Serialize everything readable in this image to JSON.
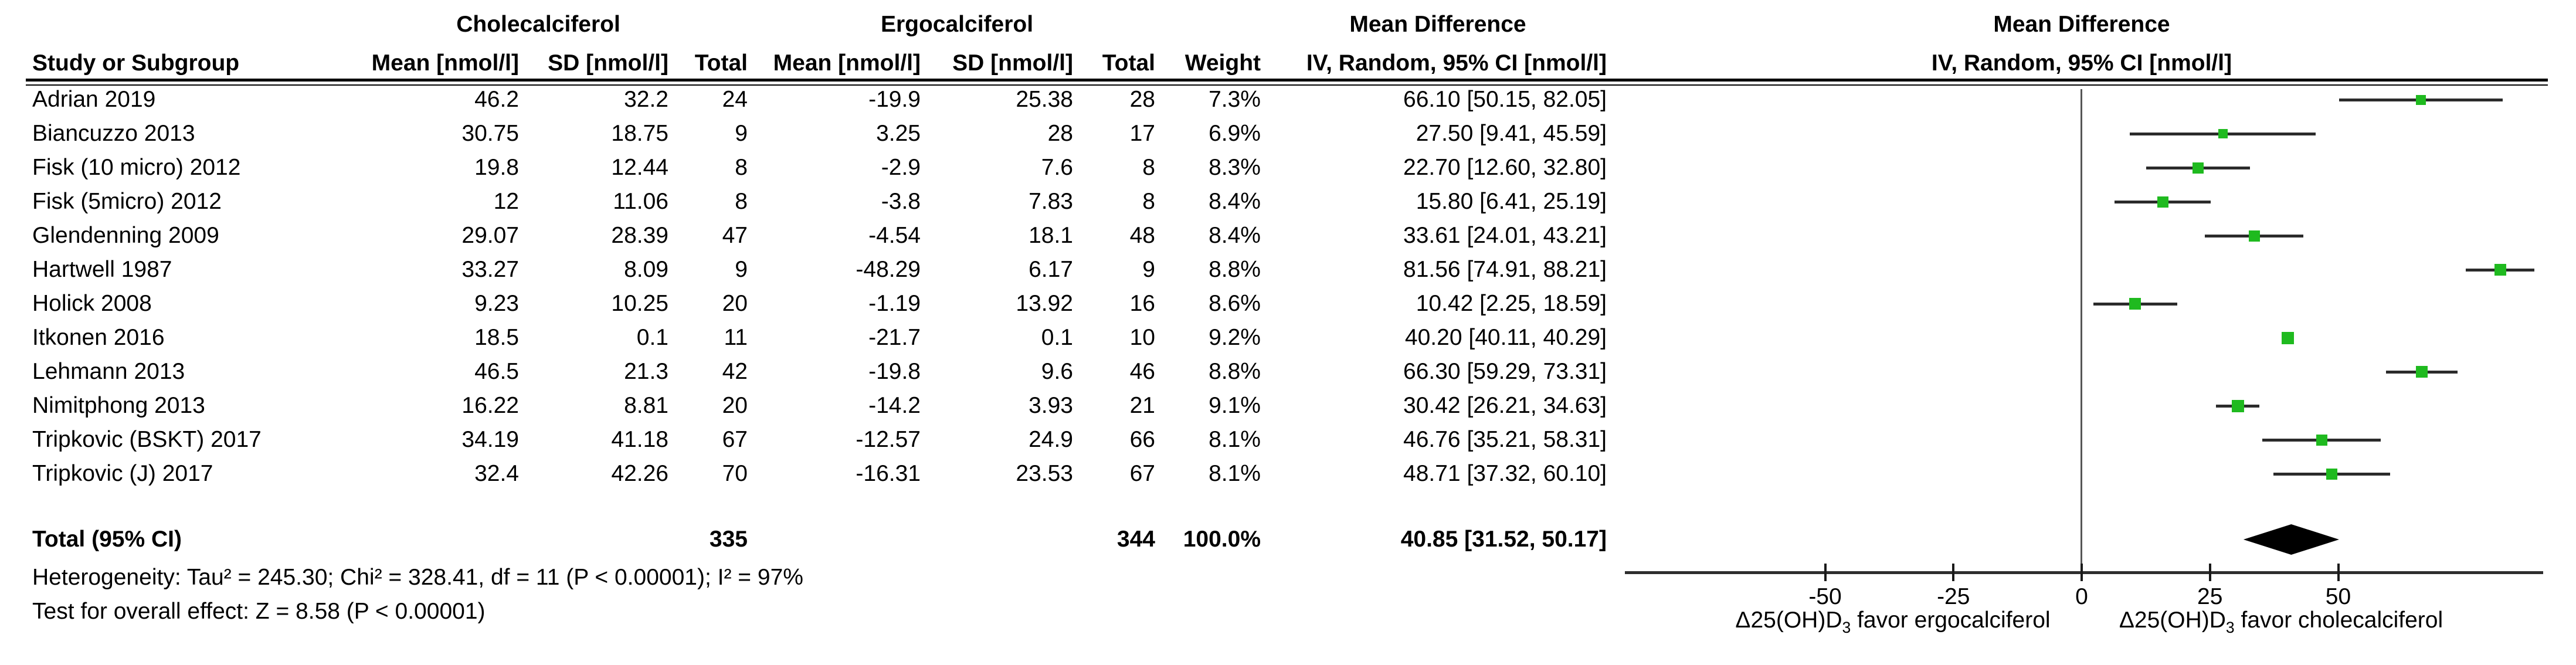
{
  "table": {
    "group_headers": {
      "treatment1": "Cholecalciferol",
      "treatment2": "Ergocalciferol",
      "effect_text": "Mean Difference",
      "effect_plot": "Mean Difference"
    },
    "col_headers": {
      "study": "Study or Subgroup",
      "mean": "Mean [nmol/l]",
      "sd": "SD [nmol/l]",
      "total": "Total",
      "weight": "Weight",
      "ci": "IV, Random, 95% CI [nmol/l]"
    },
    "rows": [
      {
        "study": "Adrian 2019",
        "mean1": "46.2",
        "sd1": "32.2",
        "total1": "24",
        "mean2": "-19.9",
        "sd2": "25.38",
        "total2": "28",
        "weight": "7.3%",
        "ci": "66.10 [50.15, 82.05]"
      },
      {
        "study": "Biancuzzo 2013",
        "mean1": "30.75",
        "sd1": "18.75",
        "total1": "9",
        "mean2": "3.25",
        "sd2": "28",
        "total2": "17",
        "weight": "6.9%",
        "ci": "27.50 [9.41, 45.59]"
      },
      {
        "study": "Fisk (10 micro) 2012",
        "mean1": "19.8",
        "sd1": "12.44",
        "total1": "8",
        "mean2": "-2.9",
        "sd2": "7.6",
        "total2": "8",
        "weight": "8.3%",
        "ci": "22.70 [12.60, 32.80]"
      },
      {
        "study": "Fisk (5micro) 2012",
        "mean1": "12",
        "sd1": "11.06",
        "total1": "8",
        "mean2": "-3.8",
        "sd2": "7.83",
        "total2": "8",
        "weight": "8.4%",
        "ci": "15.80 [6.41, 25.19]"
      },
      {
        "study": "Glendenning 2009",
        "mean1": "29.07",
        "sd1": "28.39",
        "total1": "47",
        "mean2": "-4.54",
        "sd2": "18.1",
        "total2": "48",
        "weight": "8.4%",
        "ci": "33.61 [24.01, 43.21]"
      },
      {
        "study": "Hartwell 1987",
        "mean1": "33.27",
        "sd1": "8.09",
        "total1": "9",
        "mean2": "-48.29",
        "sd2": "6.17",
        "total2": "9",
        "weight": "8.8%",
        "ci": "81.56 [74.91, 88.21]"
      },
      {
        "study": "Holick 2008",
        "mean1": "9.23",
        "sd1": "10.25",
        "total1": "20",
        "mean2": "-1.19",
        "sd2": "13.92",
        "total2": "16",
        "weight": "8.6%",
        "ci": "10.42 [2.25, 18.59]"
      },
      {
        "study": "Itkonen 2016",
        "mean1": "18.5",
        "sd1": "0.1",
        "total1": "11",
        "mean2": "-21.7",
        "sd2": "0.1",
        "total2": "10",
        "weight": "9.2%",
        "ci": "40.20 [40.11, 40.29]"
      },
      {
        "study": "Lehmann 2013",
        "mean1": "46.5",
        "sd1": "21.3",
        "total1": "42",
        "mean2": "-19.8",
        "sd2": "9.6",
        "total2": "46",
        "weight": "8.8%",
        "ci": "66.30 [59.29, 73.31]"
      },
      {
        "study": "Nimitphong 2013",
        "mean1": "16.22",
        "sd1": "8.81",
        "total1": "20",
        "mean2": "-14.2",
        "sd2": "3.93",
        "total2": "21",
        "weight": "9.1%",
        "ci": "30.42 [26.21, 34.63]"
      },
      {
        "study": "Tripkovic (BSKT) 2017",
        "mean1": "34.19",
        "sd1": "41.18",
        "total1": "67",
        "mean2": "-12.57",
        "sd2": "24.9",
        "total2": "66",
        "weight": "8.1%",
        "ci": "46.76 [35.21, 58.31]"
      },
      {
        "study": "Tripkovic (J) 2017",
        "mean1": "32.4",
        "sd1": "42.26",
        "total1": "70",
        "mean2": "-16.31",
        "sd2": "23.53",
        "total2": "67",
        "weight": "8.1%",
        "ci": "48.71 [37.32, 60.10]"
      }
    ],
    "total_row": {
      "label": "Total (95% CI)",
      "total1": "335",
      "total2": "344",
      "weight": "100.0%",
      "ci": "40.85 [31.52, 50.17]"
    },
    "footer": {
      "heterogeneity": "Heterogeneity: Tau² = 245.30; Chi² = 328.41, df = 11 (P < 0.00001); I² = 97%",
      "overall_effect": "Test for overall effect: Z = 8.58 (P < 0.00001)"
    }
  },
  "chart_data": {
    "type": "scatter",
    "title": "Mean Difference",
    "subtitle": "IV, Random, 95% CI [nmol/l]",
    "xlabel_left": "Δ25(OH)D3 favor ergocalciferol",
    "xlabel_right": "Δ25(OH)D3 favor cholecalciferol",
    "x_axis": {
      "ticks": [
        -50,
        -25,
        0,
        25,
        50
      ],
      "range": [
        -89,
        90
      ],
      "zero_line": true
    },
    "axis_labels": {
      "left": {
        "pre": "Δ25(OH)D",
        "sub": "3",
        "post": " favor ergocalciferol"
      },
      "right": {
        "pre": "Δ25(OH)D",
        "sub": "3",
        "post": " favor cholecalciferol"
      }
    },
    "studies": [
      {
        "name": "Adrian 2019",
        "est": 66.1,
        "lo": 50.15,
        "hi": 82.05,
        "weight_pct": 7.3
      },
      {
        "name": "Biancuzzo 2013",
        "est": 27.5,
        "lo": 9.41,
        "hi": 45.59,
        "weight_pct": 6.9
      },
      {
        "name": "Fisk (10 micro) 2012",
        "est": 22.7,
        "lo": 12.6,
        "hi": 32.8,
        "weight_pct": 8.3
      },
      {
        "name": "Fisk (5micro) 2012",
        "est": 15.8,
        "lo": 6.41,
        "hi": 25.19,
        "weight_pct": 8.4
      },
      {
        "name": "Glendenning 2009",
        "est": 33.61,
        "lo": 24.01,
        "hi": 43.21,
        "weight_pct": 8.4
      },
      {
        "name": "Hartwell 1987",
        "est": 81.56,
        "lo": 74.91,
        "hi": 88.21,
        "weight_pct": 8.8
      },
      {
        "name": "Holick 2008",
        "est": 10.42,
        "lo": 2.25,
        "hi": 18.59,
        "weight_pct": 8.6
      },
      {
        "name": "Itkonen 2016",
        "est": 40.2,
        "lo": 40.11,
        "hi": 40.29,
        "weight_pct": 9.2
      },
      {
        "name": "Lehmann 2013",
        "est": 66.3,
        "lo": 59.29,
        "hi": 73.31,
        "weight_pct": 8.8
      },
      {
        "name": "Nimitphong 2013",
        "est": 30.42,
        "lo": 26.21,
        "hi": 34.63,
        "weight_pct": 9.1
      },
      {
        "name": "Tripkovic (BSKT) 2017",
        "est": 46.76,
        "lo": 35.21,
        "hi": 58.31,
        "weight_pct": 8.1
      },
      {
        "name": "Tripkovic (J) 2017",
        "est": 48.71,
        "lo": 37.32,
        "hi": 60.1,
        "weight_pct": 8.1
      }
    ],
    "total": {
      "name": "Total (95% CI)",
      "est": 40.85,
      "lo": 31.52,
      "hi": 50.17
    },
    "colors": {
      "marker_green": "#1fba1f",
      "ci_line": "#2b2b2b",
      "diamond": "#000000",
      "axis": "#2e2e2e",
      "zero_line": "#555555"
    },
    "legend_position": "none",
    "grid": false
  }
}
